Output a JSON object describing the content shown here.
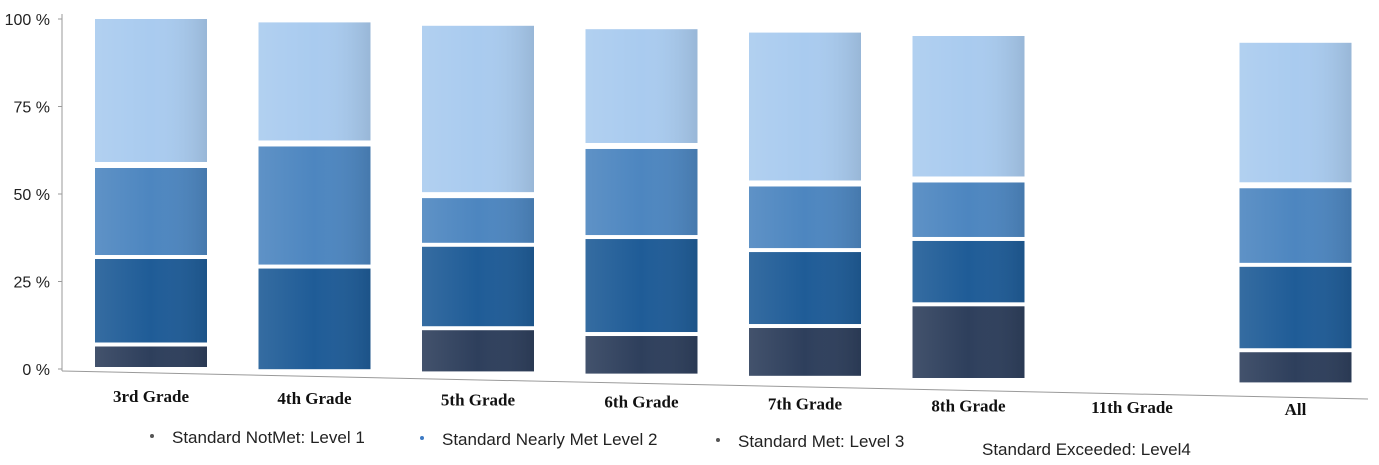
{
  "chart_data": {
    "type": "bar",
    "stacked": true,
    "normalized": true,
    "categories": [
      "3rd Grade",
      "4th Grade",
      "5th Grade",
      "6th Grade",
      "7th Grade",
      "8th Grade",
      "11th Grade",
      "All"
    ],
    "series": [
      {
        "name": "Standard NotMet: Level 1",
        "color": "#2e3f5c",
        "values": [
          7,
          0,
          13,
          12,
          15,
          22,
          0,
          10
        ]
      },
      {
        "name": "Standard Nearly Met  Level 2",
        "color": "#1f5c97",
        "values": [
          25,
          30,
          24,
          28,
          22,
          19,
          0,
          25
        ]
      },
      {
        "name": "Standard Met: Level 3",
        "color": "#4d86c0",
        "values": [
          26,
          35,
          14,
          26,
          19,
          17,
          0,
          23
        ]
      },
      {
        "name": "Standard Exceeded: Level4",
        "color": "#a9cbef",
        "values": [
          42,
          35,
          49,
          34,
          44,
          42,
          0,
          42
        ]
      }
    ],
    "y_ticks": [
      "0 %",
      "25 %",
      "50 %",
      "75 %",
      "100 %"
    ],
    "ylim": [
      0,
      100
    ],
    "legend_position": "bottom",
    "grid": false
  },
  "legend": {
    "items": [
      {
        "label": "Standard NotMet: Level 1",
        "marker": "#555555"
      },
      {
        "label": "Standard Nearly Met  Level 2",
        "marker": "#3d7ac4"
      },
      {
        "label": "Standard Met: Level 3",
        "marker": "#555555"
      },
      {
        "label": "Standard Exceeded: Level4",
        "marker": "none"
      }
    ]
  }
}
